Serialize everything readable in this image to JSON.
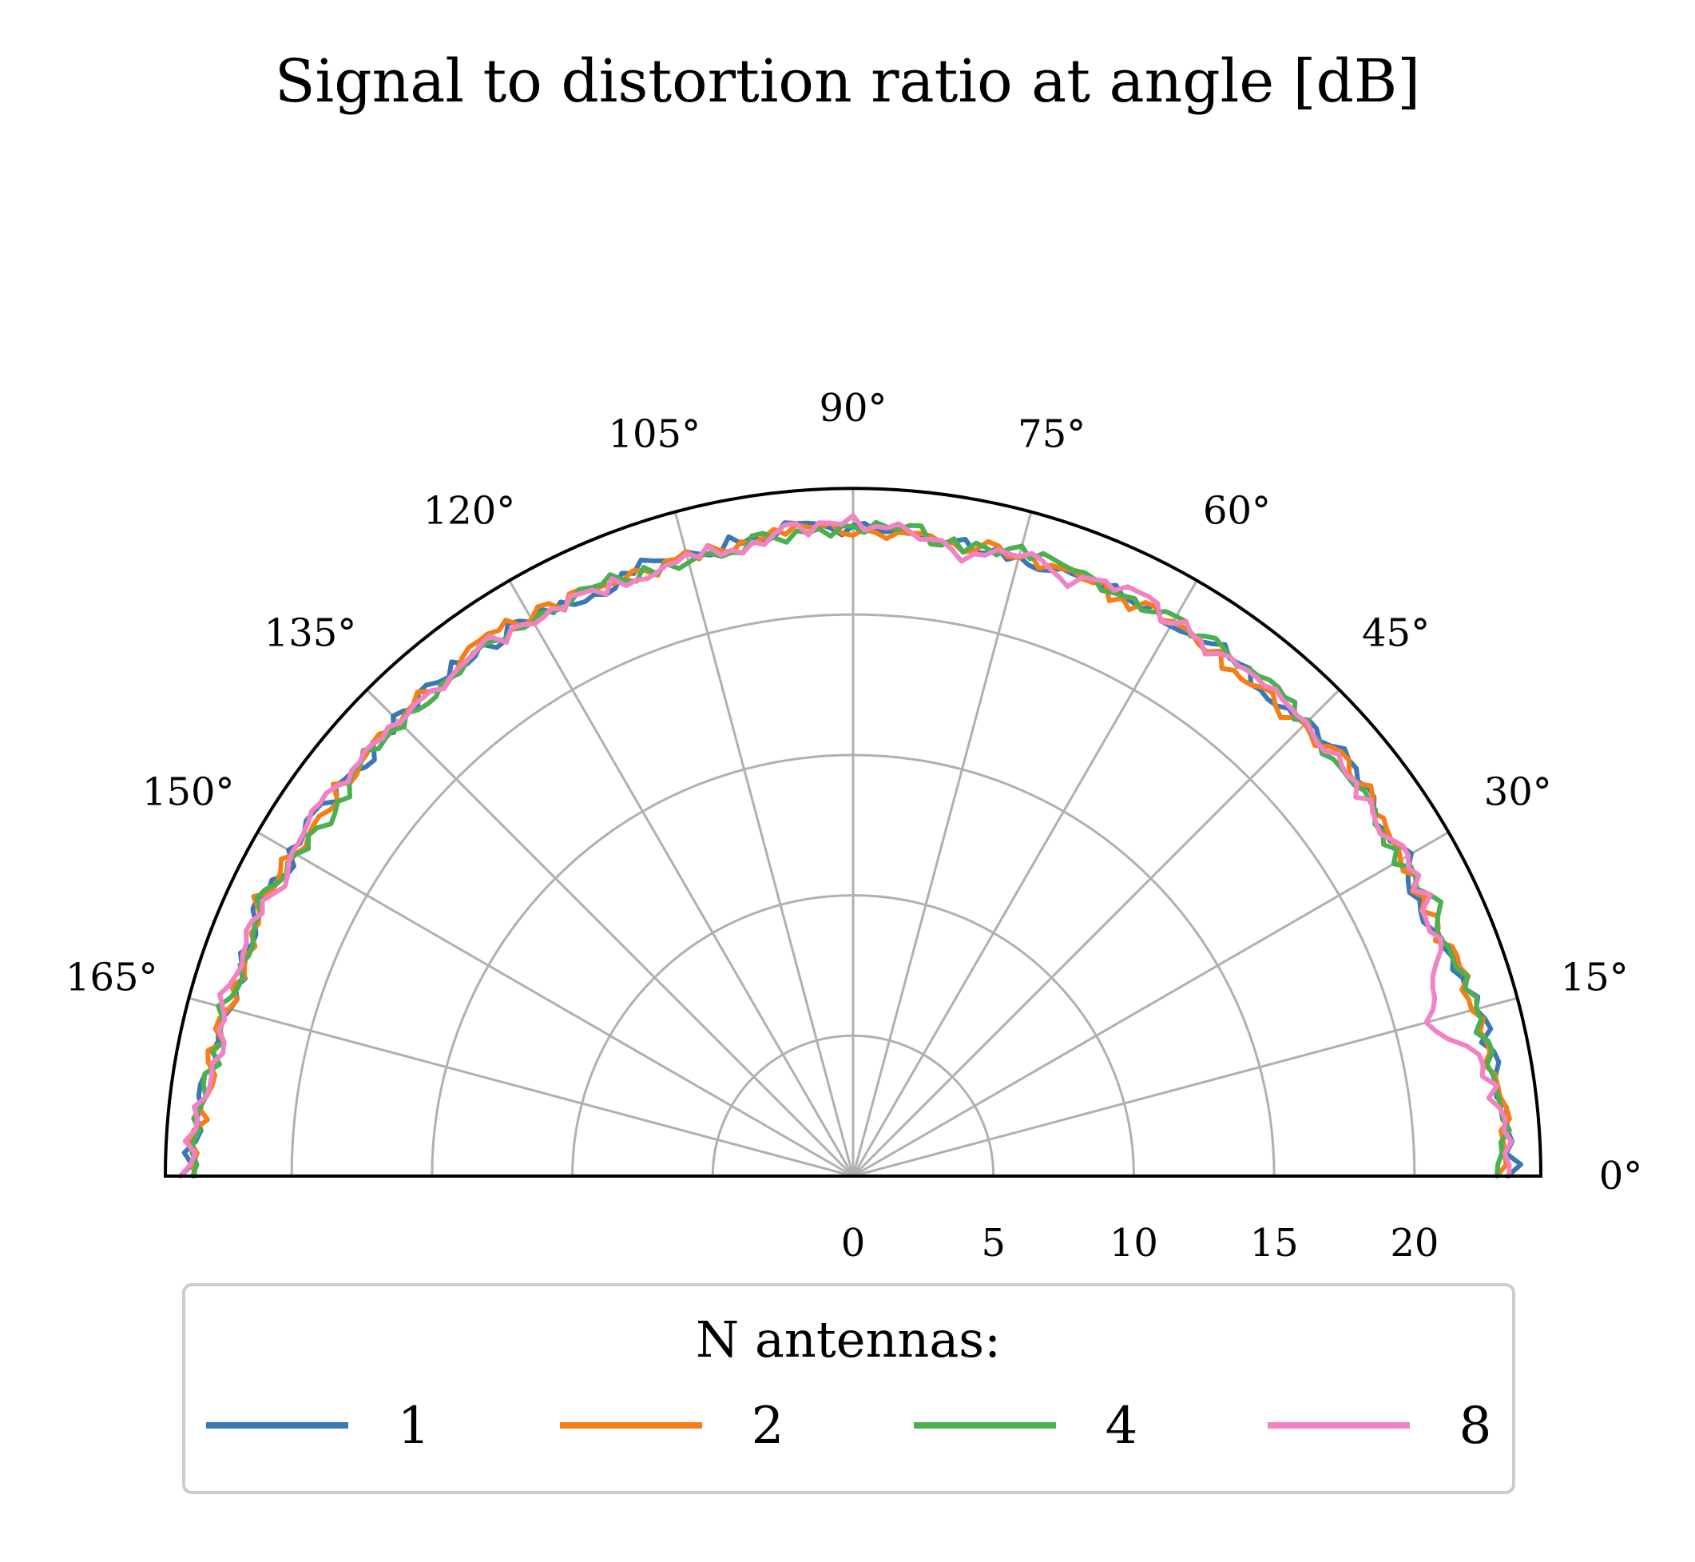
{
  "chart_data": {
    "type": "line",
    "projection": "polar-half",
    "title": "Signal to distortion ratio at angle [dB]",
    "theta_range_deg": [
      0,
      180
    ],
    "r_range": [
      0,
      24.5
    ],
    "r_ticks": [
      "0",
      "5",
      "10",
      "15",
      "20"
    ],
    "r_tick_values": [
      0,
      5,
      10,
      15,
      20
    ],
    "theta_ticks": [
      "0°",
      "15°",
      "30°",
      "45°",
      "60°",
      "75°",
      "90°",
      "105°",
      "120°",
      "135°",
      "150°",
      "165°"
    ],
    "theta_tick_values": [
      0,
      15,
      30,
      45,
      60,
      75,
      90,
      105,
      120,
      135,
      150,
      165
    ],
    "grid": true,
    "legend": {
      "title": "N antennas:",
      "placement": "bottom",
      "columns": 4
    },
    "theta": [
      0,
      5,
      10,
      15,
      20,
      25,
      30,
      35,
      40,
      45,
      50,
      55,
      60,
      65,
      70,
      75,
      80,
      85,
      90,
      95,
      100,
      105,
      110,
      115,
      120,
      125,
      130,
      135,
      140,
      145,
      150,
      155,
      160,
      165,
      170,
      175,
      180
    ],
    "series": [
      {
        "name": "1",
        "color": "#3a78b5",
        "values": [
          23.6,
          23.4,
          23.1,
          23.0,
          22.6,
          22.4,
          22.7,
          22.6,
          23.0,
          22.8,
          22.7,
          22.9,
          22.8,
          23.0,
          22.9,
          22.8,
          22.9,
          23.1,
          23.0,
          23.2,
          23.0,
          22.8,
          23.0,
          22.6,
          22.9,
          23.0,
          23.0,
          23.0,
          22.7,
          23.0,
          23.0,
          23.2,
          23.0,
          23.0,
          23.2,
          23.4,
          23.7
        ]
      },
      {
        "name": "2",
        "color": "#f57f17",
        "values": [
          23.1,
          23.3,
          23.1,
          22.9,
          22.7,
          22.5,
          22.6,
          22.8,
          22.9,
          22.6,
          22.5,
          22.6,
          22.8,
          22.6,
          22.9,
          22.9,
          22.8,
          22.9,
          23.0,
          23.1,
          22.9,
          22.8,
          22.7,
          22.8,
          23.0,
          23.2,
          22.9,
          23.1,
          23.0,
          22.9,
          23.0,
          23.3,
          23.0,
          23.0,
          23.2,
          23.3,
          23.6
        ]
      },
      {
        "name": "4",
        "color": "#4caf50",
        "values": [
          23.2,
          23.2,
          23.0,
          22.9,
          22.7,
          22.9,
          22.5,
          22.6,
          22.7,
          22.7,
          23.0,
          22.9,
          22.8,
          22.7,
          22.9,
          23.0,
          22.7,
          23.1,
          23.0,
          23.0,
          22.8,
          22.4,
          22.8,
          23.1,
          22.7,
          23.0,
          22.9,
          22.8,
          23.0,
          22.5,
          22.9,
          23.2,
          22.8,
          23.2,
          23.1,
          23.4,
          23.6
        ]
      },
      {
        "name": "8",
        "color": "#f382c4",
        "values": [
          23.5,
          23.1,
          22.9,
          21.3,
          22.3,
          22.6,
          22.7,
          22.5,
          22.8,
          22.9,
          22.9,
          22.6,
          22.8,
          23.0,
          22.6,
          22.9,
          22.5,
          23.0,
          23.3,
          23.1,
          22.8,
          22.8,
          22.6,
          22.9,
          22.8,
          23.0,
          22.6,
          22.9,
          22.8,
          23.1,
          22.8,
          23.1,
          23.2,
          23.2,
          23.0,
          23.5,
          23.8
        ]
      }
    ]
  }
}
